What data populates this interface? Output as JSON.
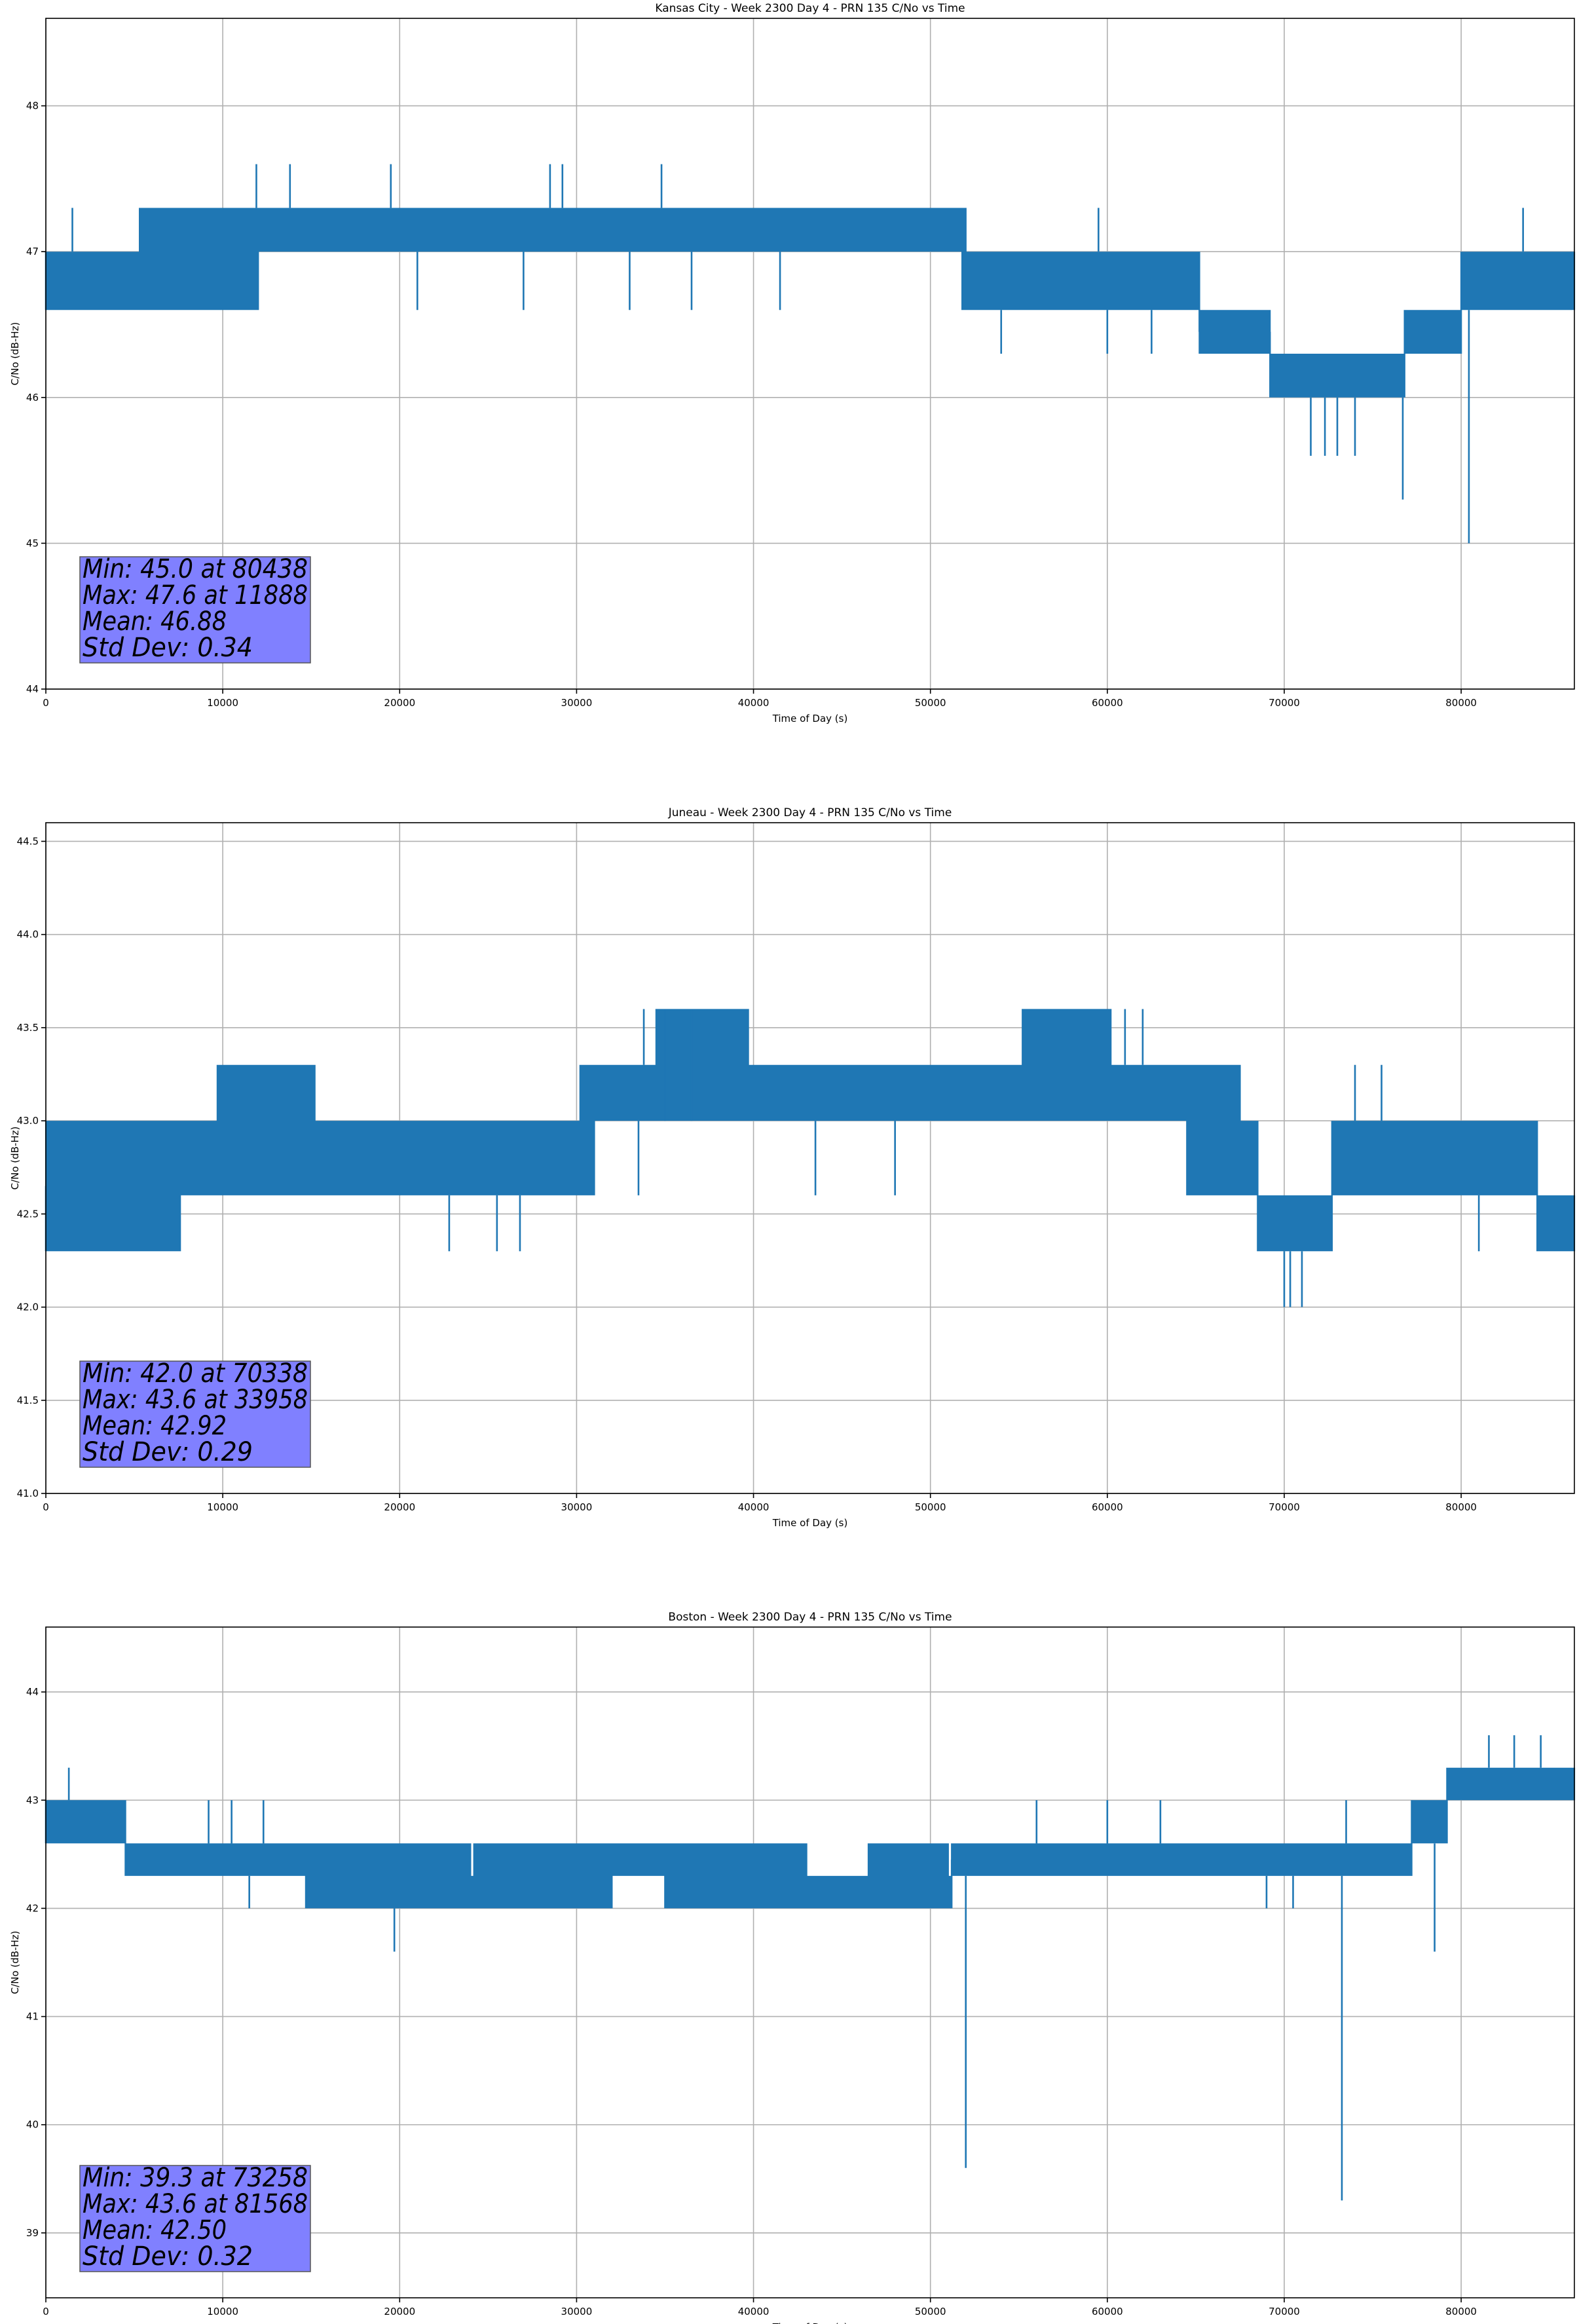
{
  "chart_data": [
    {
      "type": "line",
      "title": "Kansas City - Week 2300 Day 4 - PRN 135 C/No vs Time",
      "xlabel": "Time of Day (s)",
      "ylabel": "C/No (dB-Hz)",
      "xlim": [
        0,
        86400
      ],
      "ylim": [
        44,
        48.6
      ],
      "xticks": [
        0,
        10000,
        20000,
        30000,
        40000,
        50000,
        60000,
        70000,
        80000
      ],
      "yticks": [
        44,
        45,
        46,
        47,
        48
      ],
      "ytick_labels": [
        "44",
        "45",
        "46",
        "47",
        "48"
      ],
      "grid": true,
      "color": "#1f77b4",
      "stats": [
        "Min: 45.0 at 80438",
        "Max: 47.6 at 11888",
        "Mean: 46.88",
        "Std Dev: 0.34"
      ],
      "profile": [
        [
          0,
          46.6,
          47.0
        ],
        [
          5000,
          46.6,
          47.0
        ],
        [
          5300,
          46.6,
          47.3
        ],
        [
          12000,
          47.0,
          47.3
        ],
        [
          47000,
          47.0,
          47.3
        ],
        [
          51800,
          46.6,
          47.3
        ],
        [
          52000,
          46.6,
          47.0
        ],
        [
          65000,
          46.6,
          47.0
        ],
        [
          65200,
          46.3,
          46.6
        ],
        [
          69000,
          46.3,
          46.6
        ],
        [
          69200,
          46.0,
          46.3
        ],
        [
          76500,
          46.0,
          46.3
        ],
        [
          76800,
          46.3,
          46.6
        ],
        [
          80000,
          46.6,
          47.0
        ],
        [
          86400,
          46.6,
          47.3
        ]
      ],
      "spikes": [
        [
          1500,
          47.3
        ],
        [
          11900,
          47.6
        ],
        [
          13800,
          47.6
        ],
        [
          19500,
          47.6
        ],
        [
          28500,
          47.6
        ],
        [
          29200,
          47.6
        ],
        [
          34800,
          47.6
        ],
        [
          59500,
          47.3
        ],
        [
          83500,
          47.3
        ],
        [
          2500,
          46.6
        ],
        [
          5000,
          46.6
        ],
        [
          10000,
          46.6
        ],
        [
          21000,
          46.6
        ],
        [
          27000,
          46.6
        ],
        [
          33000,
          46.6
        ],
        [
          36500,
          46.6
        ],
        [
          41500,
          46.6
        ],
        [
          54000,
          46.3
        ],
        [
          60000,
          46.3
        ],
        [
          62500,
          46.3
        ],
        [
          65500,
          46.3
        ],
        [
          70000,
          46.0
        ],
        [
          71500,
          45.6
        ],
        [
          72300,
          45.6
        ],
        [
          73000,
          45.6
        ],
        [
          74000,
          45.6
        ],
        [
          75500,
          46.0
        ],
        [
          76700,
          45.3
        ],
        [
          79500,
          46.3
        ],
        [
          80438,
          45.0
        ]
      ]
    },
    {
      "type": "line",
      "title": "Juneau - Week 2300 Day 4 - PRN 135 C/No vs Time",
      "xlabel": "Time of Day (s)",
      "ylabel": "C/No (dB-Hz)",
      "xlim": [
        0,
        86400
      ],
      "ylim": [
        41,
        44.6
      ],
      "xticks": [
        0,
        10000,
        20000,
        30000,
        40000,
        50000,
        60000,
        70000,
        80000
      ],
      "yticks": [
        41.0,
        41.5,
        42.0,
        42.5,
        43.0,
        43.5,
        44.0,
        44.5
      ],
      "ytick_labels": [
        "41.0",
        "41.5",
        "42.0",
        "42.5",
        "43.0",
        "43.5",
        "44.0",
        "44.5"
      ],
      "grid": true,
      "color": "#1f77b4",
      "stats": [
        "Min: 42.0 at 70338",
        "Max: 43.6 at 33958",
        "Mean: 42.92",
        "Std Dev: 0.29"
      ],
      "profile": [
        [
          0,
          42.3,
          43.0
        ],
        [
          7500,
          42.3,
          43.0
        ],
        [
          7600,
          42.6,
          43.0
        ],
        [
          9500,
          42.6,
          43.0
        ],
        [
          9700,
          42.6,
          43.3
        ],
        [
          15000,
          42.6,
          43.3
        ],
        [
          15200,
          42.6,
          43.0
        ],
        [
          30000,
          42.6,
          43.0
        ],
        [
          30200,
          42.6,
          43.3
        ],
        [
          31000,
          43.0,
          43.3
        ],
        [
          34500,
          43.0,
          43.6
        ],
        [
          39500,
          43.0,
          43.6
        ],
        [
          39700,
          43.0,
          43.3
        ],
        [
          55000,
          43.0,
          43.3
        ],
        [
          55200,
          43.0,
          43.6
        ],
        [
          60000,
          43.0,
          43.6
        ],
        [
          60200,
          43.0,
          43.3
        ],
        [
          64500,
          42.6,
          43.3
        ],
        [
          67500,
          42.6,
          43.0
        ],
        [
          68500,
          42.3,
          42.6
        ],
        [
          72500,
          42.3,
          42.6
        ],
        [
          72700,
          42.6,
          43.0
        ],
        [
          84000,
          42.6,
          43.0
        ],
        [
          84300,
          42.3,
          42.6
        ],
        [
          86400,
          42.3,
          42.6
        ]
      ],
      "spikes": [
        [
          33800,
          43.6
        ],
        [
          35000,
          43.6
        ],
        [
          36500,
          43.6
        ],
        [
          61000,
          43.6
        ],
        [
          62000,
          43.6
        ],
        [
          74000,
          43.3
        ],
        [
          75500,
          43.3
        ],
        [
          22800,
          42.3
        ],
        [
          25500,
          42.3
        ],
        [
          26800,
          42.3
        ],
        [
          33500,
          42.6
        ],
        [
          43500,
          42.6
        ],
        [
          48000,
          42.6
        ],
        [
          70000,
          42.0
        ],
        [
          70338,
          42.0
        ],
        [
          71000,
          42.0
        ],
        [
          81000,
          42.3
        ]
      ]
    },
    {
      "type": "line",
      "title": "Boston - Week 2300 Day 4 - PRN 135 C/No vs Time",
      "xlabel": "Time of Day (s)",
      "ylabel": "C/No (dB-Hz)",
      "xlim": [
        0,
        86400
      ],
      "ylim": [
        38.4,
        44.6
      ],
      "xticks": [
        0,
        10000,
        20000,
        30000,
        40000,
        50000,
        60000,
        70000,
        80000
      ],
      "yticks": [
        39,
        40,
        41,
        42,
        43,
        44
      ],
      "ytick_labels": [
        "39",
        "40",
        "41",
        "42",
        "43",
        "44"
      ],
      "grid": true,
      "color": "#1f77b4",
      "stats": [
        "Min: 39.3 at 73258",
        "Max: 43.6 at 81568",
        "Mean: 42.50",
        "Std Dev: 0.32"
      ],
      "profile": [
        [
          0,
          42.6,
          43.0
        ],
        [
          4300,
          42.6,
          43.0
        ],
        [
          4500,
          42.3,
          42.6
        ],
        [
          14500,
          42.3,
          42.6
        ],
        [
          14700,
          42.0,
          42.6
        ],
        [
          24000,
          42.0,
          42.3
        ],
        [
          24200,
          42.0,
          42.6
        ],
        [
          32000,
          42.3,
          42.6
        ],
        [
          35000,
          42.0,
          42.6
        ],
        [
          43000,
          42.0,
          42.3
        ],
        [
          46500,
          42.0,
          42.6
        ],
        [
          51000,
          42.0,
          42.3
        ],
        [
          51200,
          42.3,
          42.6
        ],
        [
          77000,
          42.3,
          42.6
        ],
        [
          77200,
          42.6,
          43.0
        ],
        [
          79000,
          42.6,
          43.0
        ],
        [
          79200,
          43.0,
          43.3
        ],
        [
          86400,
          43.0,
          43.3
        ]
      ],
      "spikes": [
        [
          1300,
          43.3
        ],
        [
          9200,
          43.0
        ],
        [
          10500,
          43.0
        ],
        [
          12300,
          43.0
        ],
        [
          56000,
          43.0
        ],
        [
          60000,
          43.0
        ],
        [
          63000,
          43.0
        ],
        [
          73500,
          43.0
        ],
        [
          81568,
          43.6
        ],
        [
          83000,
          43.6
        ],
        [
          84500,
          43.6
        ],
        [
          11500,
          42.0
        ],
        [
          19700,
          41.6
        ],
        [
          30000,
          42.0
        ],
        [
          52000,
          39.6
        ],
        [
          69000,
          42.0
        ],
        [
          70500,
          42.0
        ],
        [
          73258,
          39.3
        ],
        [
          78500,
          41.6
        ]
      ]
    }
  ]
}
